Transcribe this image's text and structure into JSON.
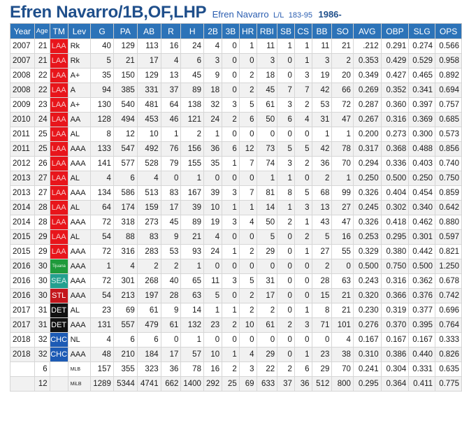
{
  "header": {
    "name": "Efren Navarro/1B,OF,LHP",
    "subname": "Efren Navarro",
    "bats_throws": "L/L",
    "weight": "183-95",
    "born": "1986-"
  },
  "columns": [
    "Year",
    "Age",
    "TM",
    "Lev",
    "G",
    "PA",
    "AB",
    "R",
    "H",
    "2B",
    "3B",
    "HR",
    "RBI",
    "SB",
    "CS",
    "BB",
    "SO",
    "AVG",
    "OBP",
    "SLG",
    "OPS"
  ],
  "rows": [
    {
      "year": "2007",
      "age": "21",
      "tm": "LAA",
      "tm_bg": "#e8151b",
      "tm_fg": "#f5c9c9",
      "lev": "Rk",
      "stats": [
        "40",
        "129",
        "113",
        "16",
        "24",
        "4",
        "0",
        "1",
        "11",
        "1",
        "1",
        "11",
        "21",
        ".212",
        "0.291",
        "0.274",
        "0.566"
      ]
    },
    {
      "year": "2007",
      "age": "21",
      "tm": "LAA",
      "tm_bg": "#e8151b",
      "tm_fg": "#f5c9c9",
      "lev": "Rk",
      "stats": [
        "5",
        "21",
        "17",
        "4",
        "6",
        "3",
        "0",
        "0",
        "3",
        "0",
        "1",
        "3",
        "2",
        "0.353",
        "0.429",
        "0.529",
        "0.958"
      ]
    },
    {
      "year": "2008",
      "age": "22",
      "tm": "LAA",
      "tm_bg": "#e8151b",
      "tm_fg": "#f5c9c9",
      "lev": "A+",
      "stats": [
        "35",
        "150",
        "129",
        "13",
        "45",
        "9",
        "0",
        "2",
        "18",
        "0",
        "3",
        "19",
        "20",
        "0.349",
        "0.427",
        "0.465",
        "0.892"
      ]
    },
    {
      "year": "2008",
      "age": "22",
      "tm": "LAA",
      "tm_bg": "#e8151b",
      "tm_fg": "#f5c9c9",
      "lev": "A",
      "stats": [
        "94",
        "385",
        "331",
        "37",
        "89",
        "18",
        "0",
        "2",
        "45",
        "7",
        "7",
        "42",
        "66",
        "0.269",
        "0.352",
        "0.341",
        "0.694"
      ]
    },
    {
      "year": "2009",
      "age": "23",
      "tm": "LAA",
      "tm_bg": "#e8151b",
      "tm_fg": "#f5c9c9",
      "lev": "A+",
      "stats": [
        "130",
        "540",
        "481",
        "64",
        "138",
        "32",
        "3",
        "5",
        "61",
        "3",
        "2",
        "53",
        "72",
        "0.287",
        "0.360",
        "0.397",
        "0.757"
      ]
    },
    {
      "year": "2010",
      "age": "24",
      "tm": "LAA",
      "tm_bg": "#e8151b",
      "tm_fg": "#f5c9c9",
      "lev": "AA",
      "stats": [
        "128",
        "494",
        "453",
        "46",
        "121",
        "24",
        "2",
        "6",
        "50",
        "6",
        "4",
        "31",
        "47",
        "0.267",
        "0.316",
        "0.369",
        "0.685"
      ]
    },
    {
      "year": "2011",
      "age": "25",
      "tm": "LAA",
      "tm_bg": "#e8151b",
      "tm_fg": "#f5c9c9",
      "lev": "AL",
      "stats": [
        "8",
        "12",
        "10",
        "1",
        "2",
        "1",
        "0",
        "0",
        "0",
        "0",
        "0",
        "1",
        "1",
        "0.200",
        "0.273",
        "0.300",
        "0.573"
      ]
    },
    {
      "year": "2011",
      "age": "25",
      "tm": "LAA",
      "tm_bg": "#e8151b",
      "tm_fg": "#f5c9c9",
      "lev": "AAA",
      "stats": [
        "133",
        "547",
        "492",
        "76",
        "156",
        "36",
        "6",
        "12",
        "73",
        "5",
        "5",
        "42",
        "78",
        "0.317",
        "0.368",
        "0.488",
        "0.856"
      ]
    },
    {
      "year": "2012",
      "age": "26",
      "tm": "LAA",
      "tm_bg": "#e8151b",
      "tm_fg": "#f5c9c9",
      "lev": "AAA",
      "stats": [
        "141",
        "577",
        "528",
        "79",
        "155",
        "35",
        "1",
        "7",
        "74",
        "3",
        "2",
        "36",
        "70",
        "0.294",
        "0.336",
        "0.403",
        "0.740"
      ]
    },
    {
      "year": "2013",
      "age": "27",
      "tm": "LAA",
      "tm_bg": "#e8151b",
      "tm_fg": "#f5c9c9",
      "lev": "AL",
      "stats": [
        "4",
        "6",
        "4",
        "0",
        "1",
        "0",
        "0",
        "0",
        "1",
        "1",
        "0",
        "2",
        "1",
        "0.250",
        "0.500",
        "0.250",
        "0.750"
      ]
    },
    {
      "year": "2013",
      "age": "27",
      "tm": "LAA",
      "tm_bg": "#e8151b",
      "tm_fg": "#f5c9c9",
      "lev": "AAA",
      "stats": [
        "134",
        "586",
        "513",
        "83",
        "167",
        "39",
        "3",
        "7",
        "81",
        "8",
        "5",
        "68",
        "99",
        "0.326",
        "0.404",
        "0.454",
        "0.859"
      ]
    },
    {
      "year": "2014",
      "age": "28",
      "tm": "LAA",
      "tm_bg": "#e8151b",
      "tm_fg": "#f5c9c9",
      "lev": "AL",
      "stats": [
        "64",
        "174",
        "159",
        "17",
        "39",
        "10",
        "1",
        "1",
        "14",
        "1",
        "3",
        "13",
        "27",
        "0.245",
        "0.302",
        "0.340",
        "0.642"
      ]
    },
    {
      "year": "2014",
      "age": "28",
      "tm": "LAA",
      "tm_bg": "#e8151b",
      "tm_fg": "#f5c9c9",
      "lev": "AAA",
      "stats": [
        "72",
        "318",
        "273",
        "45",
        "89",
        "19",
        "3",
        "4",
        "50",
        "2",
        "1",
        "43",
        "47",
        "0.326",
        "0.418",
        "0.462",
        "0.880"
      ]
    },
    {
      "year": "2015",
      "age": "29",
      "tm": "LAA",
      "tm_bg": "#e8151b",
      "tm_fg": "#f5c9c9",
      "lev": "AL",
      "stats": [
        "54",
        "88",
        "83",
        "9",
        "21",
        "4",
        "0",
        "0",
        "5",
        "0",
        "2",
        "5",
        "16",
        "0.253",
        "0.295",
        "0.301",
        "0.597"
      ]
    },
    {
      "year": "2015",
      "age": "29",
      "tm": "LAA",
      "tm_bg": "#e8151b",
      "tm_fg": "#f5c9c9",
      "lev": "AAA",
      "stats": [
        "72",
        "316",
        "283",
        "53",
        "93",
        "24",
        "1",
        "2",
        "29",
        "0",
        "1",
        "27",
        "55",
        "0.329",
        "0.380",
        "0.442",
        "0.821"
      ]
    },
    {
      "year": "2016",
      "age": "30",
      "tm": "Tijuana",
      "tm_bg": "#1f9a3b",
      "tm_fg": "#e6f5e6",
      "tm_small": true,
      "lev": "AAA",
      "stats": [
        "1",
        "4",
        "2",
        "2",
        "1",
        "0",
        "0",
        "0",
        "0",
        "0",
        "0",
        "2",
        "0",
        "0.500",
        "0.750",
        "0.500",
        "1.250"
      ]
    },
    {
      "year": "2016",
      "age": "30",
      "tm": "SEA",
      "tm_bg": "#23a08f",
      "tm_fg": "#d8f2ee",
      "lev": "AAA",
      "stats": [
        "72",
        "301",
        "268",
        "40",
        "65",
        "11",
        "3",
        "5",
        "31",
        "0",
        "0",
        "28",
        "63",
        "0.243",
        "0.316",
        "0.362",
        "0.678"
      ]
    },
    {
      "year": "2016",
      "age": "30",
      "tm": "STL",
      "tm_bg": "#c4161c",
      "tm_fg": "#ffffff",
      "lev": "AAA",
      "stats": [
        "54",
        "213",
        "197",
        "28",
        "63",
        "5",
        "0",
        "2",
        "17",
        "0",
        "0",
        "15",
        "21",
        "0.320",
        "0.366",
        "0.376",
        "0.742"
      ]
    },
    {
      "year": "2017",
      "age": "31",
      "tm": "DET",
      "tm_bg": "#111111",
      "tm_fg": "#ffffff",
      "lev": "AL",
      "stats": [
        "23",
        "69",
        "61",
        "9",
        "14",
        "1",
        "1",
        "2",
        "2",
        "0",
        "1",
        "8",
        "21",
        "0.230",
        "0.319",
        "0.377",
        "0.696"
      ]
    },
    {
      "year": "2017",
      "age": "31",
      "tm": "DET",
      "tm_bg": "#111111",
      "tm_fg": "#ffffff",
      "lev": "AAA",
      "stats": [
        "131",
        "557",
        "479",
        "61",
        "132",
        "23",
        "2",
        "10",
        "61",
        "2",
        "3",
        "71",
        "101",
        "0.276",
        "0.370",
        "0.395",
        "0.764"
      ]
    },
    {
      "year": "2018",
      "age": "32",
      "tm": "CHC",
      "tm_bg": "#1d5bb5",
      "tm_fg": "#ffffff",
      "lev": "NL",
      "stats": [
        "4",
        "6",
        "6",
        "0",
        "1",
        "0",
        "0",
        "0",
        "0",
        "0",
        "0",
        "0",
        "4",
        "0.167",
        "0.167",
        "0.167",
        "0.333"
      ]
    },
    {
      "year": "2018",
      "age": "32",
      "tm": "CHC",
      "tm_bg": "#1d5bb5",
      "tm_fg": "#ffffff",
      "lev": "AAA",
      "stats": [
        "48",
        "210",
        "184",
        "17",
        "57",
        "10",
        "1",
        "4",
        "29",
        "0",
        "1",
        "23",
        "38",
        "0.310",
        "0.386",
        "0.440",
        "0.826"
      ]
    }
  ],
  "summary": [
    {
      "age": "6",
      "lev": "MLB",
      "stats": [
        "157",
        "355",
        "323",
        "36",
        "78",
        "16",
        "2",
        "3",
        "22",
        "2",
        "6",
        "29",
        "70",
        "0.241",
        "0.304",
        "0.331",
        "0.635"
      ]
    },
    {
      "age": "12",
      "lev": "MiLB",
      "stats": [
        "1289",
        "5344",
        "4741",
        "662",
        "1400",
        "292",
        "25",
        "69",
        "633",
        "37",
        "36",
        "512",
        "800",
        "0.295",
        "0.364",
        "0.411",
        "0.775"
      ]
    }
  ]
}
